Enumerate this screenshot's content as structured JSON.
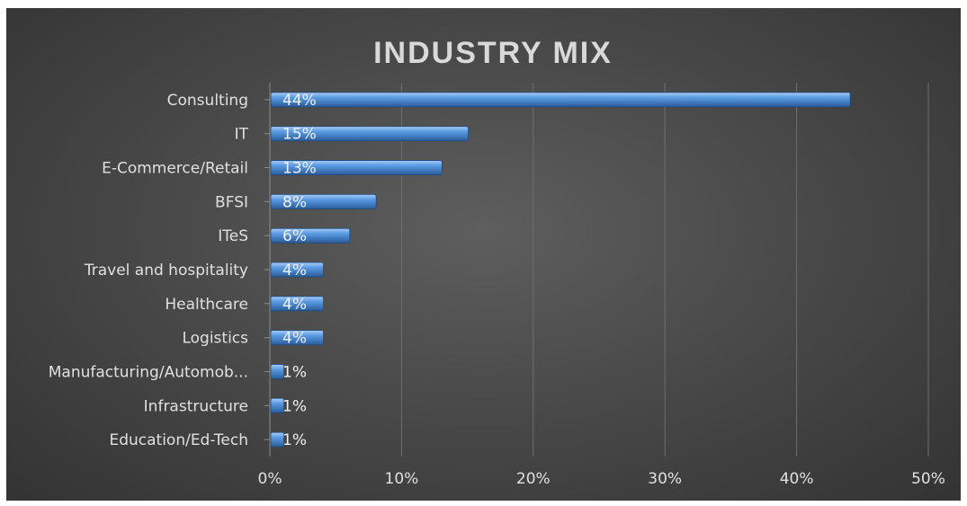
{
  "chart_data": {
    "type": "bar",
    "orientation": "horizontal",
    "title": "INDUSTRY MIX",
    "categories": [
      "Consulting",
      "IT",
      "E-Commerce/Retail",
      "BFSI",
      "ITeS",
      "Travel and hospitality",
      "Healthcare",
      "Logistics",
      "Manufacturing/Automob...",
      "Infrastructure",
      "Education/Ed-Tech"
    ],
    "values": [
      44,
      15,
      13,
      8,
      6,
      4,
      4,
      4,
      1,
      1,
      1
    ],
    "value_labels": [
      "44%",
      "15%",
      "13%",
      "8%",
      "6%",
      "4%",
      "4%",
      "4%",
      "1%",
      "1%",
      "1%"
    ],
    "xlim": [
      0,
      50
    ],
    "xticks": [
      "0%",
      "10%",
      "20%",
      "30%",
      "40%",
      "50%"
    ],
    "grid": true,
    "colors": {
      "bar": "#4f8fdc",
      "bar_light": "#9cc3f2",
      "bar_dark": "#2d5f9e",
      "background": "#4a4a4a"
    }
  }
}
